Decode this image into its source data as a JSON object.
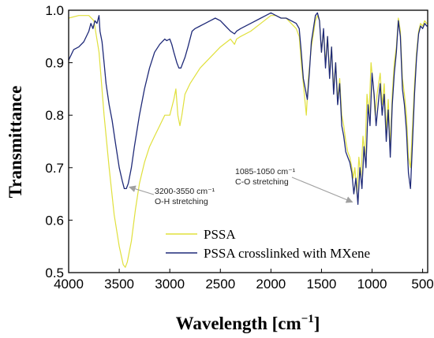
{
  "chart_data": {
    "type": "line",
    "xlabel_main": "Wavelength [cm",
    "xlabel_sup": "−1",
    "xlabel_close": "]",
    "ylabel": "Transmittance",
    "xlim": [
      4000,
      450
    ],
    "ylim": [
      0.5,
      1.0
    ],
    "x_ticks": [
      "4000",
      "3500",
      "3000",
      "2500",
      "2000",
      "1500",
      "1000",
      "500"
    ],
    "y_ticks": [
      "0.5",
      "0.6",
      "0.7",
      "0.8",
      "0.9",
      "1.0"
    ],
    "legend_position": "bottom-right",
    "grid": false,
    "series": [
      {
        "name": "PSSA",
        "color": "#e0e03c",
        "points": [
          [
            4000,
            0.985
          ],
          [
            3900,
            0.99
          ],
          [
            3800,
            0.99
          ],
          [
            3750,
            0.98
          ],
          [
            3700,
            0.92
          ],
          [
            3650,
            0.8
          ],
          [
            3600,
            0.7
          ],
          [
            3550,
            0.61
          ],
          [
            3500,
            0.55
          ],
          [
            3460,
            0.515
          ],
          [
            3440,
            0.51
          ],
          [
            3420,
            0.52
          ],
          [
            3380,
            0.56
          ],
          [
            3340,
            0.62
          ],
          [
            3300,
            0.67
          ],
          [
            3250,
            0.71
          ],
          [
            3200,
            0.74
          ],
          [
            3150,
            0.76
          ],
          [
            3100,
            0.78
          ],
          [
            3050,
            0.8
          ],
          [
            3000,
            0.8
          ],
          [
            2960,
            0.83
          ],
          [
            2940,
            0.85
          ],
          [
            2920,
            0.8
          ],
          [
            2900,
            0.78
          ],
          [
            2880,
            0.8
          ],
          [
            2850,
            0.84
          ],
          [
            2800,
            0.86
          ],
          [
            2700,
            0.89
          ],
          [
            2600,
            0.91
          ],
          [
            2500,
            0.93
          ],
          [
            2400,
            0.945
          ],
          [
            2360,
            0.935
          ],
          [
            2340,
            0.945
          ],
          [
            2300,
            0.95
          ],
          [
            2200,
            0.96
          ],
          [
            2100,
            0.975
          ],
          [
            2000,
            0.99
          ],
          [
            1950,
            0.99
          ],
          [
            1900,
            0.985
          ],
          [
            1850,
            0.985
          ],
          [
            1800,
            0.975
          ],
          [
            1750,
            0.965
          ],
          [
            1720,
            0.95
          ],
          [
            1700,
            0.9
          ],
          [
            1680,
            0.86
          ],
          [
            1650,
            0.8
          ],
          [
            1630,
            0.87
          ],
          [
            1600,
            0.93
          ],
          [
            1560,
            0.98
          ],
          [
            1540,
            0.99
          ],
          [
            1520,
            0.98
          ],
          [
            1500,
            0.92
          ],
          [
            1480,
            0.96
          ],
          [
            1460,
            0.9
          ],
          [
            1440,
            0.95
          ],
          [
            1420,
            0.88
          ],
          [
            1400,
            0.93
          ],
          [
            1380,
            0.85
          ],
          [
            1360,
            0.9
          ],
          [
            1340,
            0.83
          ],
          [
            1320,
            0.87
          ],
          [
            1300,
            0.8
          ],
          [
            1280,
            0.78
          ],
          [
            1260,
            0.75
          ],
          [
            1240,
            0.73
          ],
          [
            1220,
            0.72
          ],
          [
            1200,
            0.7
          ],
          [
            1185,
            0.68
          ],
          [
            1170,
            0.7
          ],
          [
            1150,
            0.65
          ],
          [
            1130,
            0.72
          ],
          [
            1110,
            0.68
          ],
          [
            1090,
            0.76
          ],
          [
            1070,
            0.72
          ],
          [
            1050,
            0.84
          ],
          [
            1030,
            0.8
          ],
          [
            1010,
            0.9
          ],
          [
            990,
            0.86
          ],
          [
            970,
            0.8
          ],
          [
            950,
            0.84
          ],
          [
            920,
            0.88
          ],
          [
            900,
            0.82
          ],
          [
            880,
            0.86
          ],
          [
            860,
            0.77
          ],
          [
            840,
            0.83
          ],
          [
            820,
            0.74
          ],
          [
            800,
            0.84
          ],
          [
            780,
            0.9
          ],
          [
            760,
            0.93
          ],
          [
            740,
            0.985
          ],
          [
            720,
            0.96
          ],
          [
            700,
            0.87
          ],
          [
            680,
            0.84
          ],
          [
            660,
            0.8
          ],
          [
            640,
            0.72
          ],
          [
            620,
            0.7
          ],
          [
            600,
            0.78
          ],
          [
            580,
            0.86
          ],
          [
            560,
            0.92
          ],
          [
            540,
            0.96
          ],
          [
            520,
            0.975
          ],
          [
            500,
            0.97
          ],
          [
            480,
            0.98
          ],
          [
            460,
            0.975
          ],
          [
            450,
            0.975
          ]
        ]
      },
      {
        "name": "PSSA crosslinked with MXene",
        "color": "#1f2a78",
        "points": [
          [
            4000,
            0.905
          ],
          [
            3950,
            0.925
          ],
          [
            3900,
            0.93
          ],
          [
            3850,
            0.94
          ],
          [
            3800,
            0.96
          ],
          [
            3780,
            0.975
          ],
          [
            3760,
            0.965
          ],
          [
            3740,
            0.98
          ],
          [
            3720,
            0.975
          ],
          [
            3700,
            0.99
          ],
          [
            3690,
            0.96
          ],
          [
            3670,
            0.94
          ],
          [
            3650,
            0.9
          ],
          [
            3630,
            0.86
          ],
          [
            3600,
            0.82
          ],
          [
            3570,
            0.79
          ],
          [
            3540,
            0.75
          ],
          [
            3500,
            0.7
          ],
          [
            3470,
            0.675
          ],
          [
            3450,
            0.66
          ],
          [
            3430,
            0.66
          ],
          [
            3410,
            0.67
          ],
          [
            3380,
            0.7
          ],
          [
            3350,
            0.74
          ],
          [
            3300,
            0.8
          ],
          [
            3250,
            0.85
          ],
          [
            3200,
            0.89
          ],
          [
            3150,
            0.92
          ],
          [
            3100,
            0.935
          ],
          [
            3050,
            0.945
          ],
          [
            3030,
            0.942
          ],
          [
            3000,
            0.945
          ],
          [
            2980,
            0.935
          ],
          [
            2960,
            0.92
          ],
          [
            2930,
            0.9
          ],
          [
            2910,
            0.89
          ],
          [
            2890,
            0.89
          ],
          [
            2870,
            0.9
          ],
          [
            2850,
            0.91
          ],
          [
            2820,
            0.93
          ],
          [
            2800,
            0.945
          ],
          [
            2780,
            0.96
          ],
          [
            2750,
            0.965
          ],
          [
            2700,
            0.97
          ],
          [
            2650,
            0.975
          ],
          [
            2600,
            0.98
          ],
          [
            2550,
            0.985
          ],
          [
            2500,
            0.98
          ],
          [
            2450,
            0.97
          ],
          [
            2400,
            0.96
          ],
          [
            2360,
            0.955
          ],
          [
            2340,
            0.96
          ],
          [
            2300,
            0.965
          ],
          [
            2200,
            0.975
          ],
          [
            2100,
            0.985
          ],
          [
            2050,
            0.99
          ],
          [
            2000,
            0.995
          ],
          [
            1950,
            0.99
          ],
          [
            1900,
            0.985
          ],
          [
            1850,
            0.985
          ],
          [
            1800,
            0.98
          ],
          [
            1750,
            0.975
          ],
          [
            1720,
            0.965
          ],
          [
            1700,
            0.92
          ],
          [
            1680,
            0.87
          ],
          [
            1660,
            0.85
          ],
          [
            1640,
            0.83
          ],
          [
            1620,
            0.88
          ],
          [
            1600,
            0.94
          ],
          [
            1560,
            0.99
          ],
          [
            1540,
            0.995
          ],
          [
            1520,
            0.98
          ],
          [
            1500,
            0.92
          ],
          [
            1480,
            0.965
          ],
          [
            1460,
            0.89
          ],
          [
            1440,
            0.95
          ],
          [
            1420,
            0.87
          ],
          [
            1400,
            0.93
          ],
          [
            1380,
            0.84
          ],
          [
            1360,
            0.9
          ],
          [
            1340,
            0.82
          ],
          [
            1320,
            0.86
          ],
          [
            1300,
            0.78
          ],
          [
            1280,
            0.76
          ],
          [
            1260,
            0.73
          ],
          [
            1240,
            0.72
          ],
          [
            1220,
            0.71
          ],
          [
            1200,
            0.69
          ],
          [
            1180,
            0.65
          ],
          [
            1160,
            0.68
          ],
          [
            1140,
            0.63
          ],
          [
            1120,
            0.7
          ],
          [
            1100,
            0.66
          ],
          [
            1080,
            0.74
          ],
          [
            1060,
            0.7
          ],
          [
            1040,
            0.82
          ],
          [
            1020,
            0.78
          ],
          [
            1000,
            0.88
          ],
          [
            980,
            0.84
          ],
          [
            960,
            0.78
          ],
          [
            940,
            0.82
          ],
          [
            920,
            0.86
          ],
          [
            900,
            0.8
          ],
          [
            880,
            0.84
          ],
          [
            860,
            0.75
          ],
          [
            840,
            0.81
          ],
          [
            820,
            0.72
          ],
          [
            800,
            0.82
          ],
          [
            780,
            0.88
          ],
          [
            760,
            0.92
          ],
          [
            740,
            0.98
          ],
          [
            720,
            0.95
          ],
          [
            700,
            0.85
          ],
          [
            680,
            0.82
          ],
          [
            660,
            0.77
          ],
          [
            640,
            0.69
          ],
          [
            620,
            0.66
          ],
          [
            600,
            0.75
          ],
          [
            580,
            0.84
          ],
          [
            560,
            0.91
          ],
          [
            540,
            0.955
          ],
          [
            520,
            0.97
          ],
          [
            500,
            0.965
          ],
          [
            480,
            0.975
          ],
          [
            460,
            0.97
          ],
          [
            450,
            0.97
          ]
        ]
      }
    ],
    "annotations": [
      {
        "lines": [
          "3200-3550 cm⁻¹",
          "O-H stretching"
        ],
        "target": [
          3430,
          0.66
        ]
      },
      {
        "lines": [
          "1085-1050 cm⁻¹",
          "C-O stretching"
        ],
        "target": [
          1180,
          0.63
        ]
      }
    ]
  }
}
